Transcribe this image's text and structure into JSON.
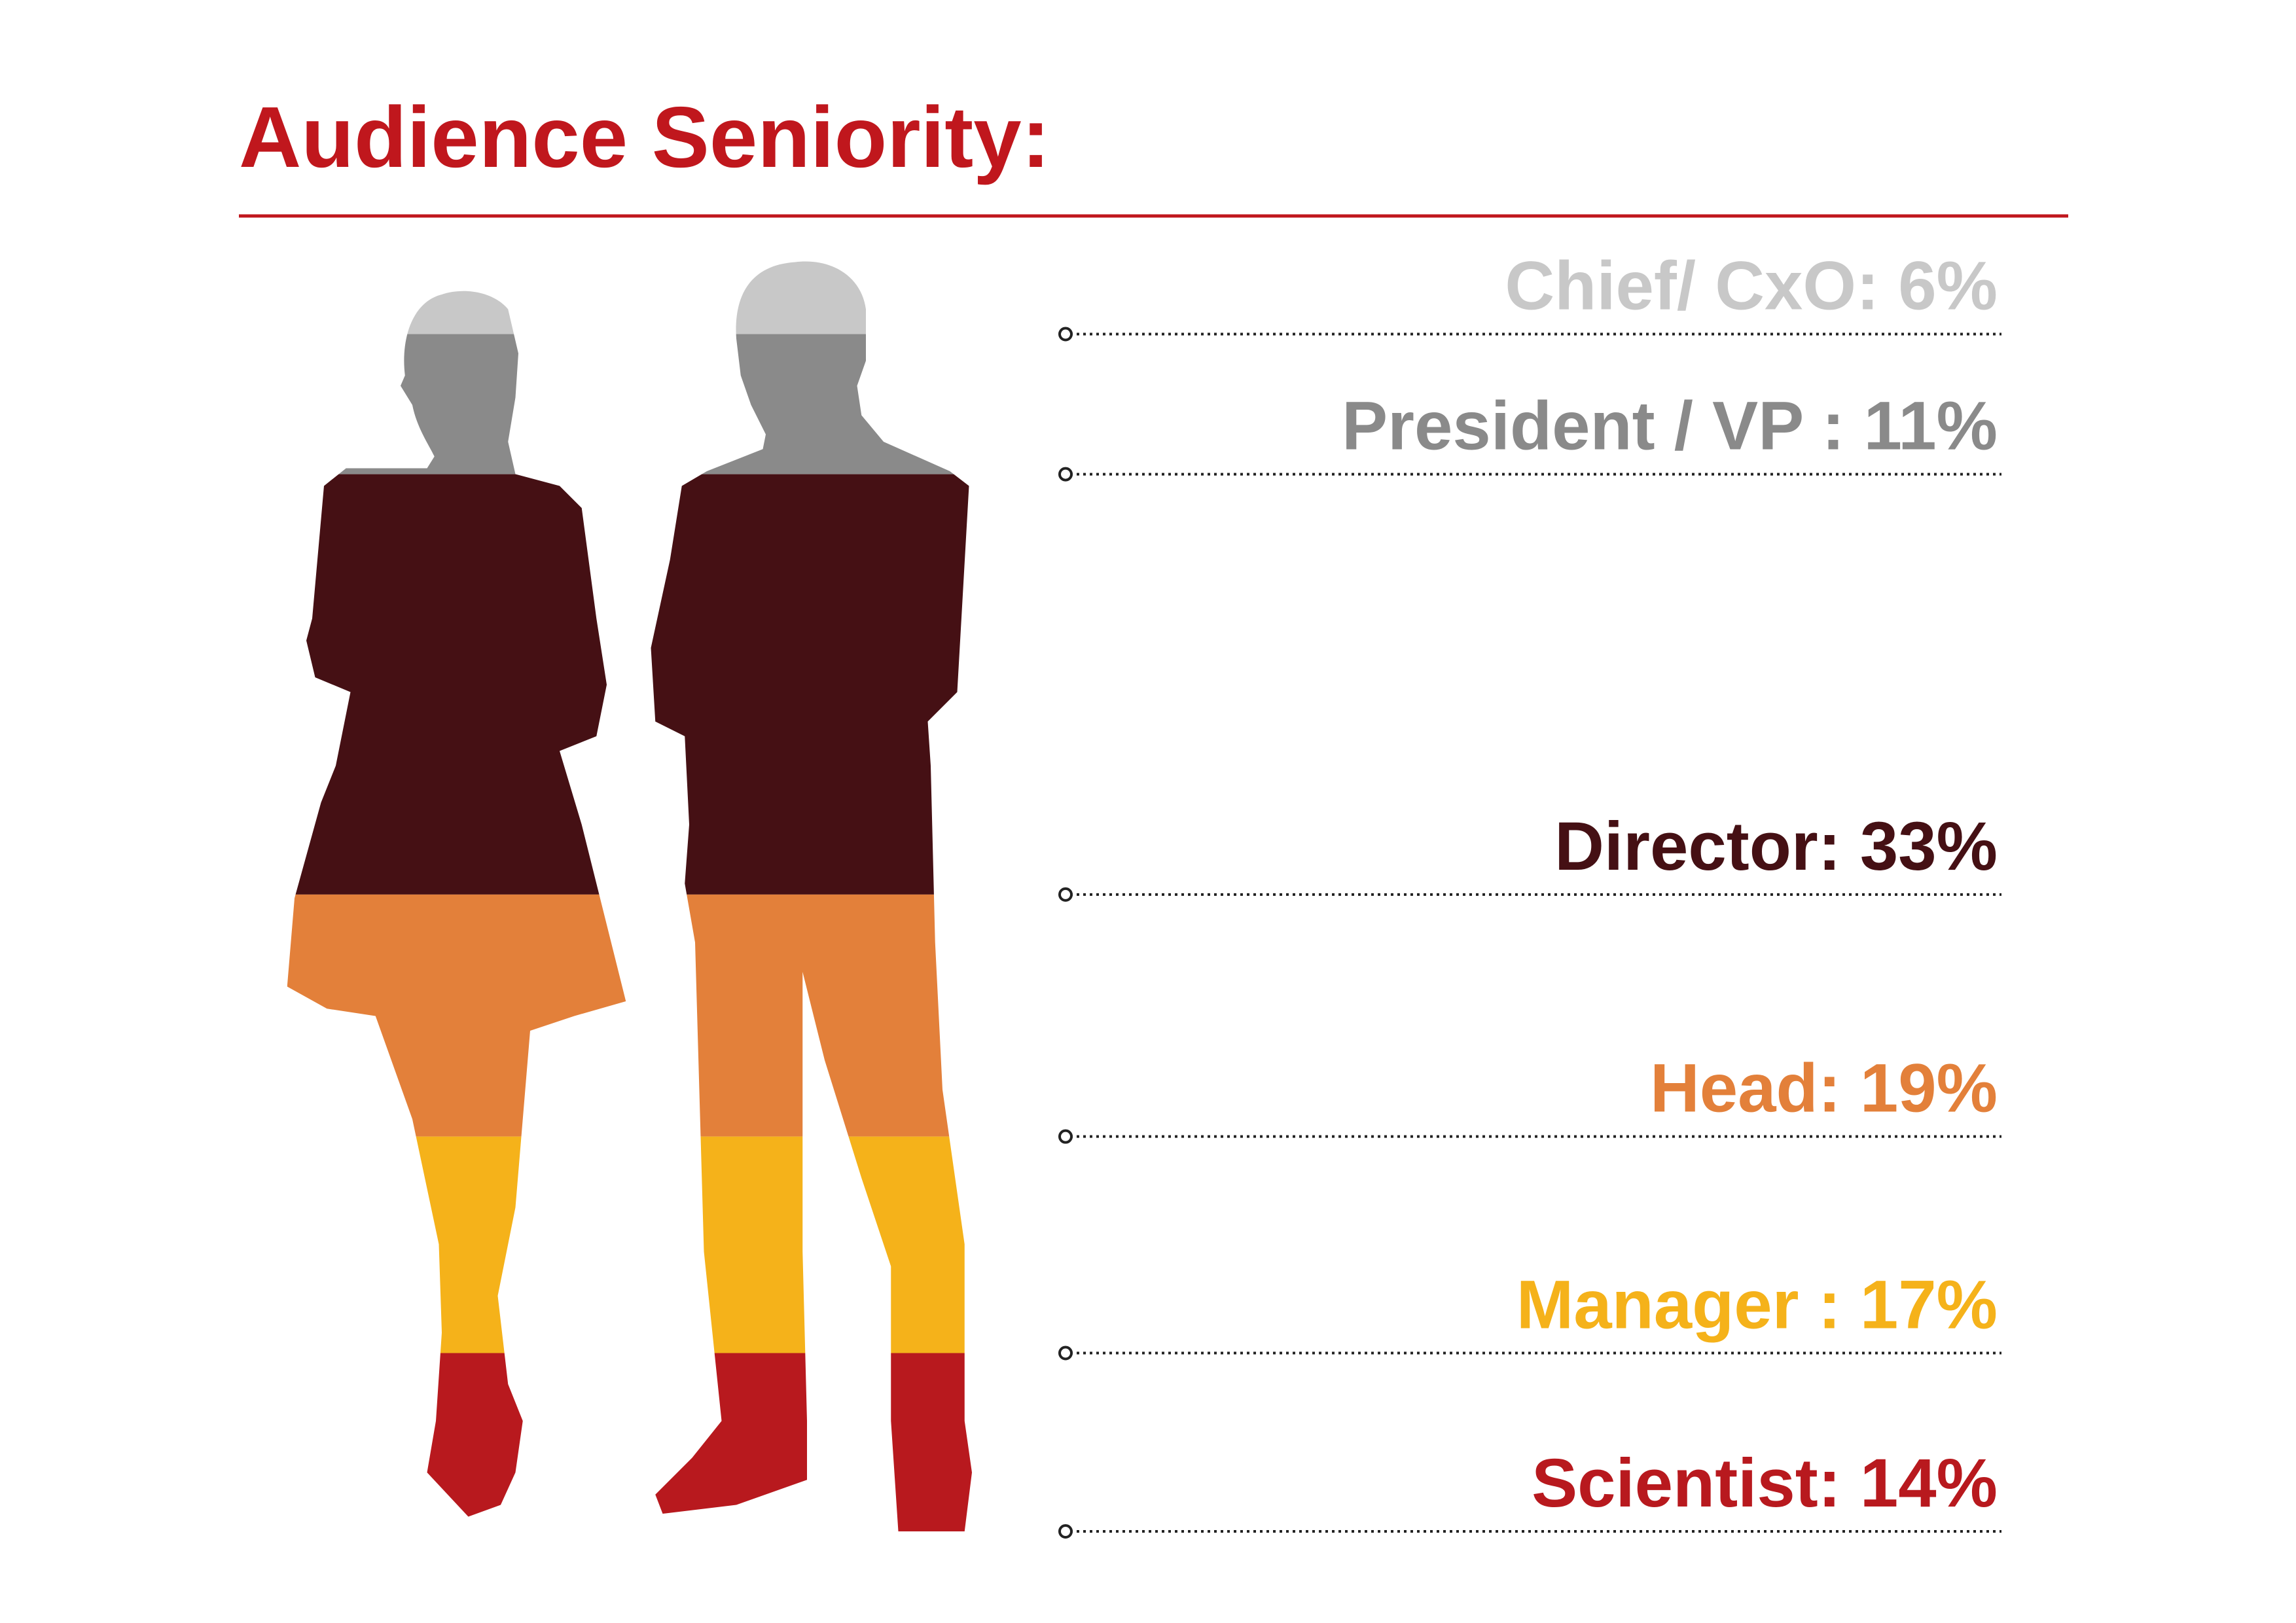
{
  "chart_data": {
    "type": "pictograph",
    "title": "Audience Seniority:",
    "values": [
      6,
      11,
      33,
      19,
      17,
      14
    ],
    "value_labels": [
      "Chief/ CxO: 6%",
      "President / VP : 11%",
      "Director: 33%",
      "Head: 19%",
      "Manager : 17%",
      "Scientist: 14%"
    ],
    "colors": [
      "#c8c8c8",
      "#8a8a8a",
      "#451014",
      "#e3803a",
      "#f5b21a",
      "#b8191e"
    ]
  }
}
